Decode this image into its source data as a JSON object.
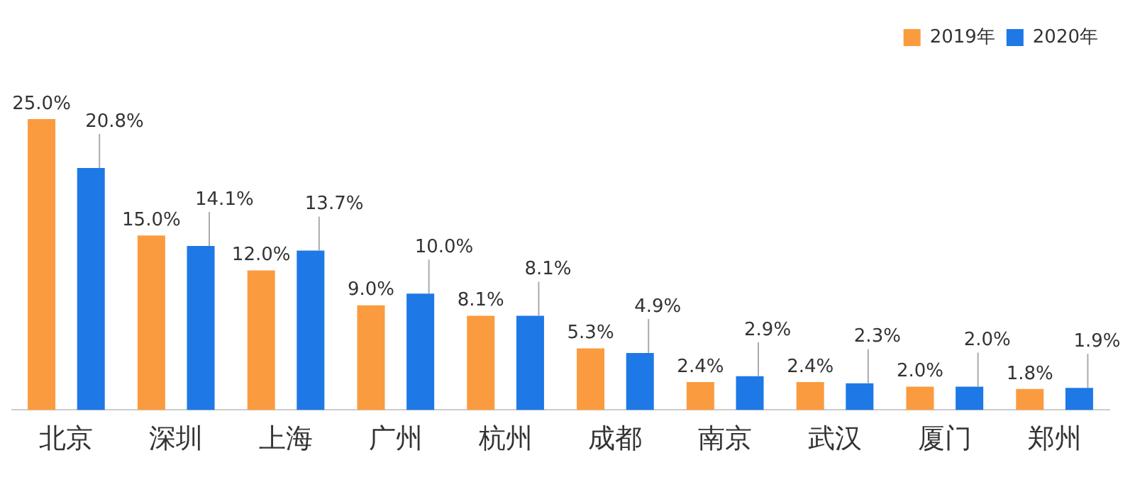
{
  "chart_data": {
    "type": "bar",
    "categories": [
      "北京",
      "深圳",
      "上海",
      "广州",
      "杭州",
      "成都",
      "南京",
      "武汉",
      "厦门",
      "郑州"
    ],
    "series": [
      {
        "name": "2019年",
        "color": "#fb9b3f",
        "values": [
          25.0,
          15.0,
          12.0,
          9.0,
          8.1,
          5.3,
          2.4,
          2.4,
          2.0,
          1.8
        ],
        "value_labels": [
          "25.0%",
          "15.0%",
          "12.0%",
          "9.0%",
          "8.1%",
          "5.3%",
          "2.4%",
          "2.4%",
          "2.0%",
          "1.8%"
        ]
      },
      {
        "name": "2020年",
        "color": "#1e78e6",
        "values": [
          20.8,
          14.1,
          13.7,
          10.0,
          8.1,
          4.9,
          2.9,
          2.3,
          2.0,
          1.9
        ],
        "value_labels": [
          "20.8%",
          "14.1%",
          "13.7%",
          "10.0%",
          "8.1%",
          "4.9%",
          "2.9%",
          "2.3%",
          "2.0%",
          "1.9%"
        ]
      }
    ],
    "legend": "top right",
    "grid": false
  }
}
